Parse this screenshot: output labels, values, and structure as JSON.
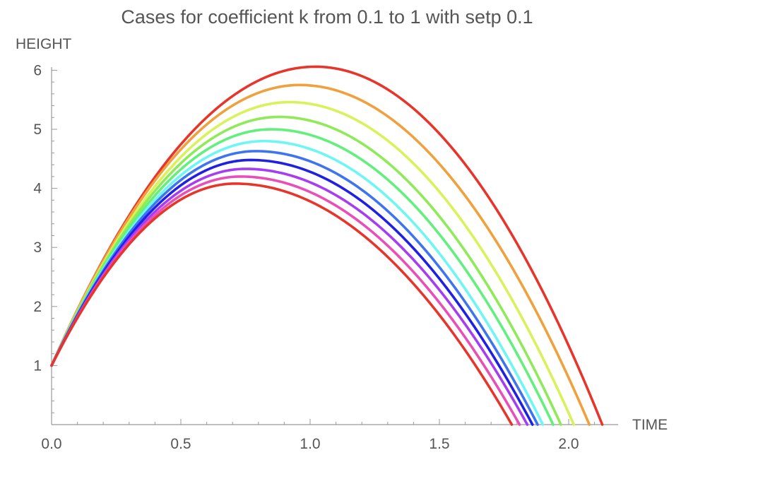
{
  "chart_data": {
    "type": "line",
    "title": "Cases for coefficient k from 0.1 to 1 with setp 0.1",
    "xlabel": "TIME",
    "ylabel": "HEIGHT",
    "xlim": [
      0,
      2.2
    ],
    "ylim": [
      0,
      6.1
    ],
    "x_ticks": [
      0.0,
      0.5,
      1.0,
      1.5,
      2.0
    ],
    "x_tick_labels": [
      "0.0",
      "0.5",
      "1.0",
      "1.5",
      "2.0"
    ],
    "y_ticks": [
      1,
      2,
      3,
      4,
      5,
      6
    ],
    "y_tick_labels": [
      "1",
      "2",
      "3",
      "4",
      "5",
      "6"
    ],
    "grid": false,
    "legend": "none",
    "y0": 1.0,
    "series": [
      {
        "color": "#E8352B",
        "peak_x": 1.02,
        "peak_y": 6.06,
        "x_end": 2.13
      },
      {
        "color": "#F0A03C",
        "peak_x": 0.96,
        "peak_y": 5.75,
        "x_end": 2.08
      },
      {
        "color": "#D9F25A",
        "peak_x": 0.92,
        "peak_y": 5.46,
        "x_end": 2.02
      },
      {
        "color": "#8EEB57",
        "peak_x": 0.88,
        "peak_y": 5.21,
        "x_end": 1.97
      },
      {
        "color": "#62F07C",
        "peak_x": 0.85,
        "peak_y": 5.0,
        "x_end": 1.94
      },
      {
        "color": "#6CF7F4",
        "peak_x": 0.82,
        "peak_y": 4.8,
        "x_end": 1.9
      },
      {
        "color": "#3E74F0",
        "peak_x": 0.79,
        "peak_y": 4.63,
        "x_end": 1.88
      },
      {
        "color": "#1F1FE6",
        "peak_x": 0.77,
        "peak_y": 4.48,
        "x_end": 1.86
      },
      {
        "color": "#A63DF2",
        "peak_x": 0.75,
        "peak_y": 4.33,
        "x_end": 1.84
      },
      {
        "color": "#E84FB8",
        "peak_x": 0.73,
        "peak_y": 4.2,
        "x_end": 1.81
      },
      {
        "color": "#E8352B",
        "peak_x": 0.71,
        "peak_y": 4.08,
        "x_end": 1.78
      }
    ]
  }
}
